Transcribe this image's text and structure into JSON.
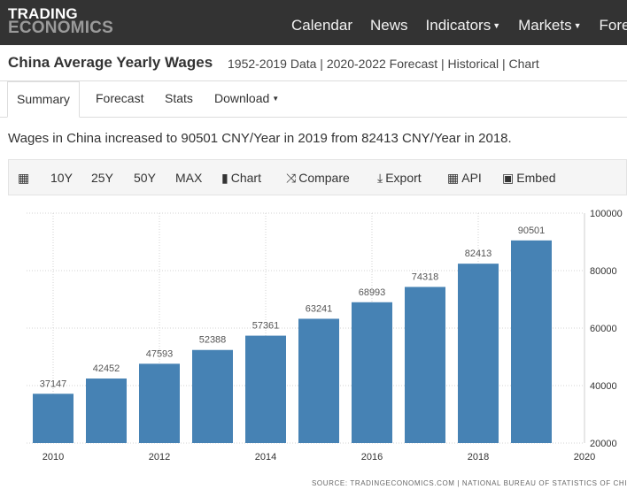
{
  "nav": {
    "logo_line1": "TRADING",
    "logo_line2": "ECONOMICS",
    "items": [
      {
        "label": "Calendar",
        "has_caret": false
      },
      {
        "label": "News",
        "has_caret": false
      },
      {
        "label": "Indicators",
        "has_caret": true
      },
      {
        "label": "Markets",
        "has_caret": true
      },
      {
        "label": "Forecasts",
        "has_caret": false
      }
    ],
    "caret": "▼"
  },
  "page": {
    "title": "China Average Yearly Wages",
    "subtitle": "1952-2019 Data | 2020-2022 Forecast | Historical | Chart"
  },
  "tabs": {
    "summary": "Summary",
    "forecast": "Forecast",
    "stats": "Stats",
    "download": "Download",
    "download_caret": "▼"
  },
  "summary_text": "Wages in China increased to 90501 CNY/Year in 2019 from 82413 CNY/Year in 2018.",
  "toolbar": {
    "calendar_icon": "▦",
    "ranges": [
      "10Y",
      "25Y",
      "50Y",
      "MAX"
    ],
    "chart_icon": "▮",
    "chart": "Chart",
    "compare_icon": "⤨",
    "compare": "Compare",
    "export_icon": "⤓",
    "export": "Export",
    "api_icon": "▦",
    "api": "API",
    "embed_icon": "▣",
    "embed": "Embed"
  },
  "colors": {
    "bar": "#4682b4",
    "nav_bg": "#333333"
  },
  "chart_data": {
    "type": "bar",
    "title": "China Average Yearly Wages",
    "categories": [
      "2010",
      "2011",
      "2012",
      "2013",
      "2014",
      "2015",
      "2016",
      "2017",
      "2018",
      "2019"
    ],
    "values": [
      37147,
      42452,
      47593,
      52388,
      57361,
      63241,
      68993,
      74318,
      82413,
      90501
    ],
    "x_tick_labels": [
      "2010",
      "2012",
      "2014",
      "2016",
      "2018",
      "2020"
    ],
    "x_range": [
      2009.5,
      2020
    ],
    "y_ticks": [
      20000,
      40000,
      60000,
      80000,
      100000
    ],
    "ylim": [
      20000,
      100000
    ],
    "yaxis_side": "right",
    "unit": "CNY/Year",
    "grid": true,
    "data_labels": true
  },
  "source": "SOURCE: TRADINGECONOMICS.COM  |  NATIONAL BUREAU OF STATISTICS OF CHINA"
}
